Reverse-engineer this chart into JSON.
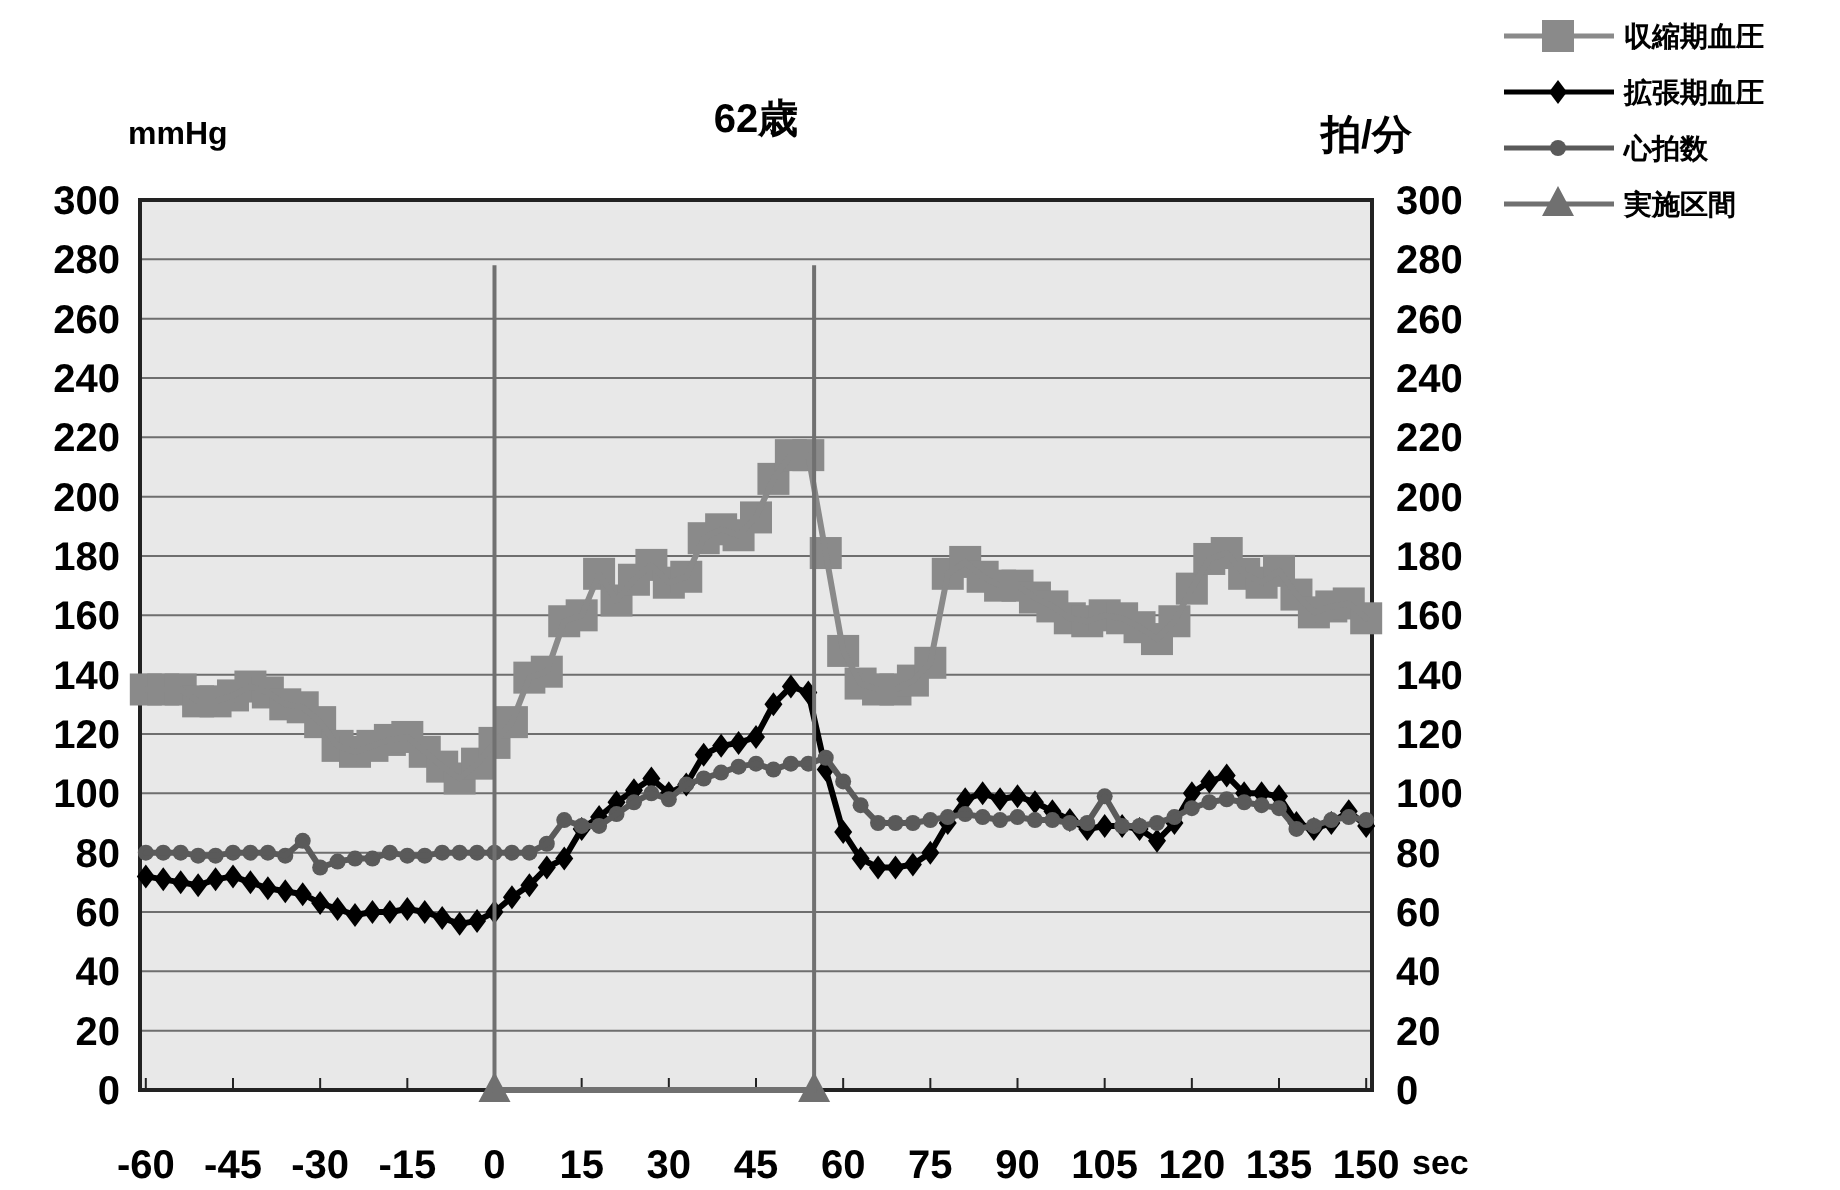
{
  "chart_data": {
    "type": "line",
    "title": "62歳",
    "xlabel": "sec",
    "ylabel": "mmHg",
    "y2label": "拍/分",
    "x": [
      -60,
      -57,
      -54,
      -51,
      -48,
      -45,
      -42,
      -39,
      -36,
      -33,
      -30,
      -27,
      -24,
      -21,
      -18,
      -15,
      -12,
      -9,
      -6,
      -3,
      0,
      3,
      6,
      9,
      12,
      15,
      18,
      21,
      24,
      27,
      30,
      33,
      36,
      39,
      42,
      45,
      48,
      51,
      54,
      57,
      60,
      63,
      66,
      69,
      72,
      75,
      78,
      81,
      84,
      87,
      90,
      93,
      96,
      99,
      102,
      105,
      108,
      111,
      114,
      117,
      120,
      123,
      126,
      129,
      132,
      135,
      138,
      141,
      144,
      147,
      150
    ],
    "series": [
      {
        "name": "収縮期血圧",
        "color": "#8a8a8a",
        "marker": "square",
        "values": [
          135,
          135,
          135,
          131,
          131,
          133,
          136,
          134,
          130,
          129,
          124,
          116,
          114,
          116,
          118,
          119,
          114,
          109,
          105,
          110,
          117,
          124,
          139,
          141,
          158,
          160,
          174,
          165,
          172,
          177,
          171,
          173,
          186,
          189,
          187,
          193,
          206,
          214,
          214,
          181,
          148,
          137,
          135,
          135,
          138,
          144,
          174,
          178,
          173,
          170,
          170,
          166,
          163,
          159,
          158,
          160,
          159,
          156,
          152,
          158,
          169,
          179,
          181,
          174,
          171,
          175,
          167,
          161,
          163,
          164,
          159
        ]
      },
      {
        "name": "拡張期血圧",
        "color": "#000000",
        "marker": "diamond",
        "values": [
          72,
          71,
          70,
          69,
          71,
          72,
          70,
          68,
          67,
          66,
          63,
          61,
          59,
          60,
          60,
          61,
          60,
          58,
          56,
          57,
          60,
          65,
          69,
          75,
          78,
          88,
          92,
          97,
          101,
          105,
          100,
          103,
          113,
          116,
          117,
          119,
          130,
          136,
          134,
          108,
          87,
          78,
          75,
          75,
          76,
          80,
          90,
          98,
          100,
          98,
          99,
          97,
          94,
          91,
          88,
          89,
          89,
          88,
          84,
          90,
          100,
          104,
          106,
          100,
          100,
          99,
          90,
          88,
          90,
          94,
          89
        ]
      },
      {
        "name": "心拍数",
        "color": "#5a5a5a",
        "marker": "circle",
        "values": [
          80,
          80,
          80,
          79,
          79,
          80,
          80,
          80,
          79,
          84,
          75,
          77,
          78,
          78,
          80,
          79,
          79,
          80,
          80,
          80,
          80,
          80,
          80,
          83,
          91,
          89,
          89,
          93,
          97,
          100,
          98,
          103,
          105,
          107,
          109,
          110,
          108,
          110,
          110,
          112,
          104,
          96,
          90,
          90,
          90,
          91,
          92,
          93,
          92,
          91,
          92,
          91,
          91,
          90,
          90,
          99,
          89,
          89,
          90,
          92,
          95,
          97,
          98,
          97,
          96,
          95,
          88,
          89,
          91,
          92,
          91
        ]
      },
      {
        "name": "実施区間",
        "color": "#707070",
        "marker": "triangle",
        "x": [
          0,
          55
        ],
        "values": [
          0,
          0
        ],
        "errors": [
          [
            0,
            278
          ],
          [
            0,
            278
          ]
        ]
      }
    ],
    "xlim": [
      -61,
      151
    ],
    "xticks": [
      -60,
      -45,
      -30,
      -15,
      0,
      15,
      30,
      45,
      60,
      75,
      90,
      105,
      120,
      135,
      150
    ],
    "ylim": [
      0,
      300
    ],
    "yticks": [
      0,
      20,
      40,
      60,
      80,
      100,
      120,
      140,
      160,
      180,
      200,
      220,
      240,
      260,
      280,
      300
    ],
    "y2lim": [
      0,
      300
    ],
    "y2ticks": [
      0,
      20,
      40,
      60,
      80,
      100,
      120,
      140,
      160,
      180,
      200,
      220,
      240,
      260,
      280,
      300
    ],
    "grid": "y",
    "legend": "top right"
  }
}
